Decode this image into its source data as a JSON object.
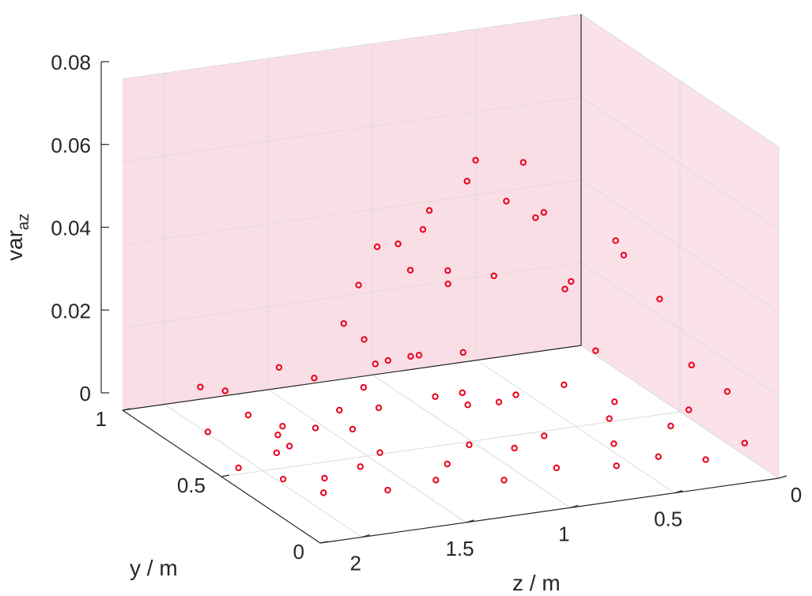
{
  "chart_data": {
    "type": "scatter",
    "title": "",
    "xlabel": "z / m",
    "ylabel": "y / m",
    "zlabel_main": "var",
    "zlabel_sub": "az",
    "x_ticks": [
      "2",
      "1.5",
      "1",
      "0.5",
      "0"
    ],
    "y_ticks": [
      "1",
      "0.5",
      "0"
    ],
    "z_ticks": [
      "0.08",
      "0.06",
      "0.04",
      "0.02",
      "0"
    ],
    "xlim": [
      0,
      2.2
    ],
    "ylim": [
      0,
      1
    ],
    "zlim": [
      0,
      0.08
    ],
    "grid": true,
    "marker": "circle",
    "colors": {
      "marker": "#e8001c",
      "wall": "#f7c8d6",
      "axis": "#262626",
      "grid": "#dcdcdc"
    },
    "points_on_floor": [
      {
        "x": 1.99,
        "y": 0.79,
        "z": 0
      },
      {
        "x": 1.84,
        "y": 0.6,
        "z": 0
      },
      {
        "x": 1.75,
        "y": 0.63,
        "z": 0
      },
      {
        "x": 1.73,
        "y": 0.86,
        "z": 0
      },
      {
        "x": 1.73,
        "y": 0.71,
        "z": 0
      },
      {
        "x": 1.66,
        "y": 0.76,
        "z": 0
      },
      {
        "x": 1.54,
        "y": 0.72,
        "z": 0
      },
      {
        "x": 1.4,
        "y": 0.68,
        "z": 0
      },
      {
        "x": 1.34,
        "y": 0.81,
        "z": 0
      },
      {
        "x": 1.17,
        "y": 0.79,
        "z": 0
      },
      {
        "x": 1.11,
        "y": 0.93,
        "z": 0
      },
      {
        "x": 0.88,
        "y": 0.81,
        "z": 0
      },
      {
        "x": 0.8,
        "y": 0.73,
        "z": 0
      },
      {
        "x": 0.75,
        "y": 0.81,
        "z": 0
      },
      {
        "x": 0.66,
        "y": 0.72,
        "z": 0
      },
      {
        "x": 0.55,
        "y": 0.75,
        "z": 0
      },
      {
        "x": 0.32,
        "y": 0.52,
        "z": 0
      },
      {
        "x": 0.3,
        "y": 0.77,
        "z": 0
      },
      {
        "x": 0.45,
        "y": 0.36,
        "z": 0
      },
      {
        "x": 0.68,
        "y": 0.47,
        "z": 0
      },
      {
        "x": 0.87,
        "y": 0.42,
        "z": 0
      },
      {
        "x": 1.03,
        "y": 0.48,
        "z": 0
      },
      {
        "x": 1.23,
        "y": 0.38,
        "z": 0
      },
      {
        "x": 1.43,
        "y": 0.51,
        "z": 0
      },
      {
        "x": 1.59,
        "y": 0.44,
        "z": 0
      },
      {
        "x": 1.8,
        "y": 0.4,
        "z": 0
      },
      {
        "x": 1.97,
        "y": 0.43,
        "z": 0
      },
      {
        "x": 2.08,
        "y": 0.54,
        "z": 0
      },
      {
        "x": 1.89,
        "y": 0.31,
        "z": 0
      },
      {
        "x": 1.62,
        "y": 0.27,
        "z": 0
      },
      {
        "x": 1.37,
        "y": 0.29,
        "z": 0
      },
      {
        "x": 1.1,
        "y": 0.23,
        "z": 0
      },
      {
        "x": 0.82,
        "y": 0.26,
        "z": 0
      },
      {
        "x": 0.57,
        "y": 0.22,
        "z": 0
      },
      {
        "x": 0.35,
        "y": 0.24,
        "z": 0
      },
      {
        "x": 0.18,
        "y": 0.18,
        "z": 0
      },
      {
        "x": 0.12,
        "y": 0.42,
        "z": 0
      },
      {
        "x": 0.2,
        "y": 0.62,
        "z": 0
      }
    ],
    "points_raised": [
      {
        "x": 1.95,
        "y": 0.87,
        "z": 0.008
      },
      {
        "x": 1.85,
        "y": 0.85,
        "z": 0.007
      },
      {
        "x": 1.62,
        "y": 0.82,
        "z": 0.012
      },
      {
        "x": 1.47,
        "y": 0.8,
        "z": 0.009
      },
      {
        "x": 1.3,
        "y": 0.83,
        "z": 0.02
      },
      {
        "x": 1.24,
        "y": 0.79,
        "z": 0.017
      },
      {
        "x": 1.21,
        "y": 0.85,
        "z": 0.028
      },
      {
        "x": 1.13,
        "y": 0.84,
        "z": 0.037
      },
      {
        "x": 1.03,
        "y": 0.84,
        "z": 0.037
      },
      {
        "x": 0.99,
        "y": 0.82,
        "z": 0.031
      },
      {
        "x": 0.92,
        "y": 0.83,
        "z": 0.04
      },
      {
        "x": 0.88,
        "y": 0.84,
        "z": 0.044
      },
      {
        "x": 0.82,
        "y": 0.81,
        "z": 0.03
      },
      {
        "x": 0.8,
        "y": 0.83,
        "z": 0.026
      },
      {
        "x": 0.68,
        "y": 0.86,
        "z": 0.049
      },
      {
        "x": 0.62,
        "y": 0.88,
        "z": 0.053
      },
      {
        "x": 0.57,
        "y": 0.84,
        "z": 0.026
      },
      {
        "x": 0.52,
        "y": 0.83,
        "z": 0.044
      },
      {
        "x": 0.42,
        "y": 0.85,
        "z": 0.052
      },
      {
        "x": 0.38,
        "y": 0.83,
        "z": 0.039
      },
      {
        "x": 0.34,
        "y": 0.83,
        "z": 0.04
      },
      {
        "x": 1.12,
        "y": 0.86,
        "z": 0.008
      },
      {
        "x": 1.05,
        "y": 0.87,
        "z": 0.008
      },
      {
        "x": 0.96,
        "y": 0.85,
        "z": 0.009
      },
      {
        "x": 0.92,
        "y": 0.85,
        "z": 0.009
      },
      {
        "x": 0.68,
        "y": 0.88,
        "z": 0.007
      },
      {
        "x": 0.22,
        "y": 0.85,
        "z": 0.02
      },
      {
        "x": 0.2,
        "y": 0.84,
        "z": 0.022
      },
      {
        "x": 0.1,
        "y": 0.72,
        "z": 0.035
      },
      {
        "x": 0.08,
        "y": 0.7,
        "z": 0.032
      },
      {
        "x": 0.05,
        "y": 0.55,
        "z": 0.026
      },
      {
        "x": 0.02,
        "y": 0.42,
        "z": 0.014
      },
      {
        "x": 0.01,
        "y": 0.25,
        "z": 0.013
      },
      {
        "x": 0.12,
        "y": 0.8,
        "z": 0.006
      },
      {
        "x": 0.1,
        "y": 0.35,
        "z": 0.006
      },
      {
        "x": 0.05,
        "y": 0.12,
        "z": 0.005
      }
    ]
  }
}
